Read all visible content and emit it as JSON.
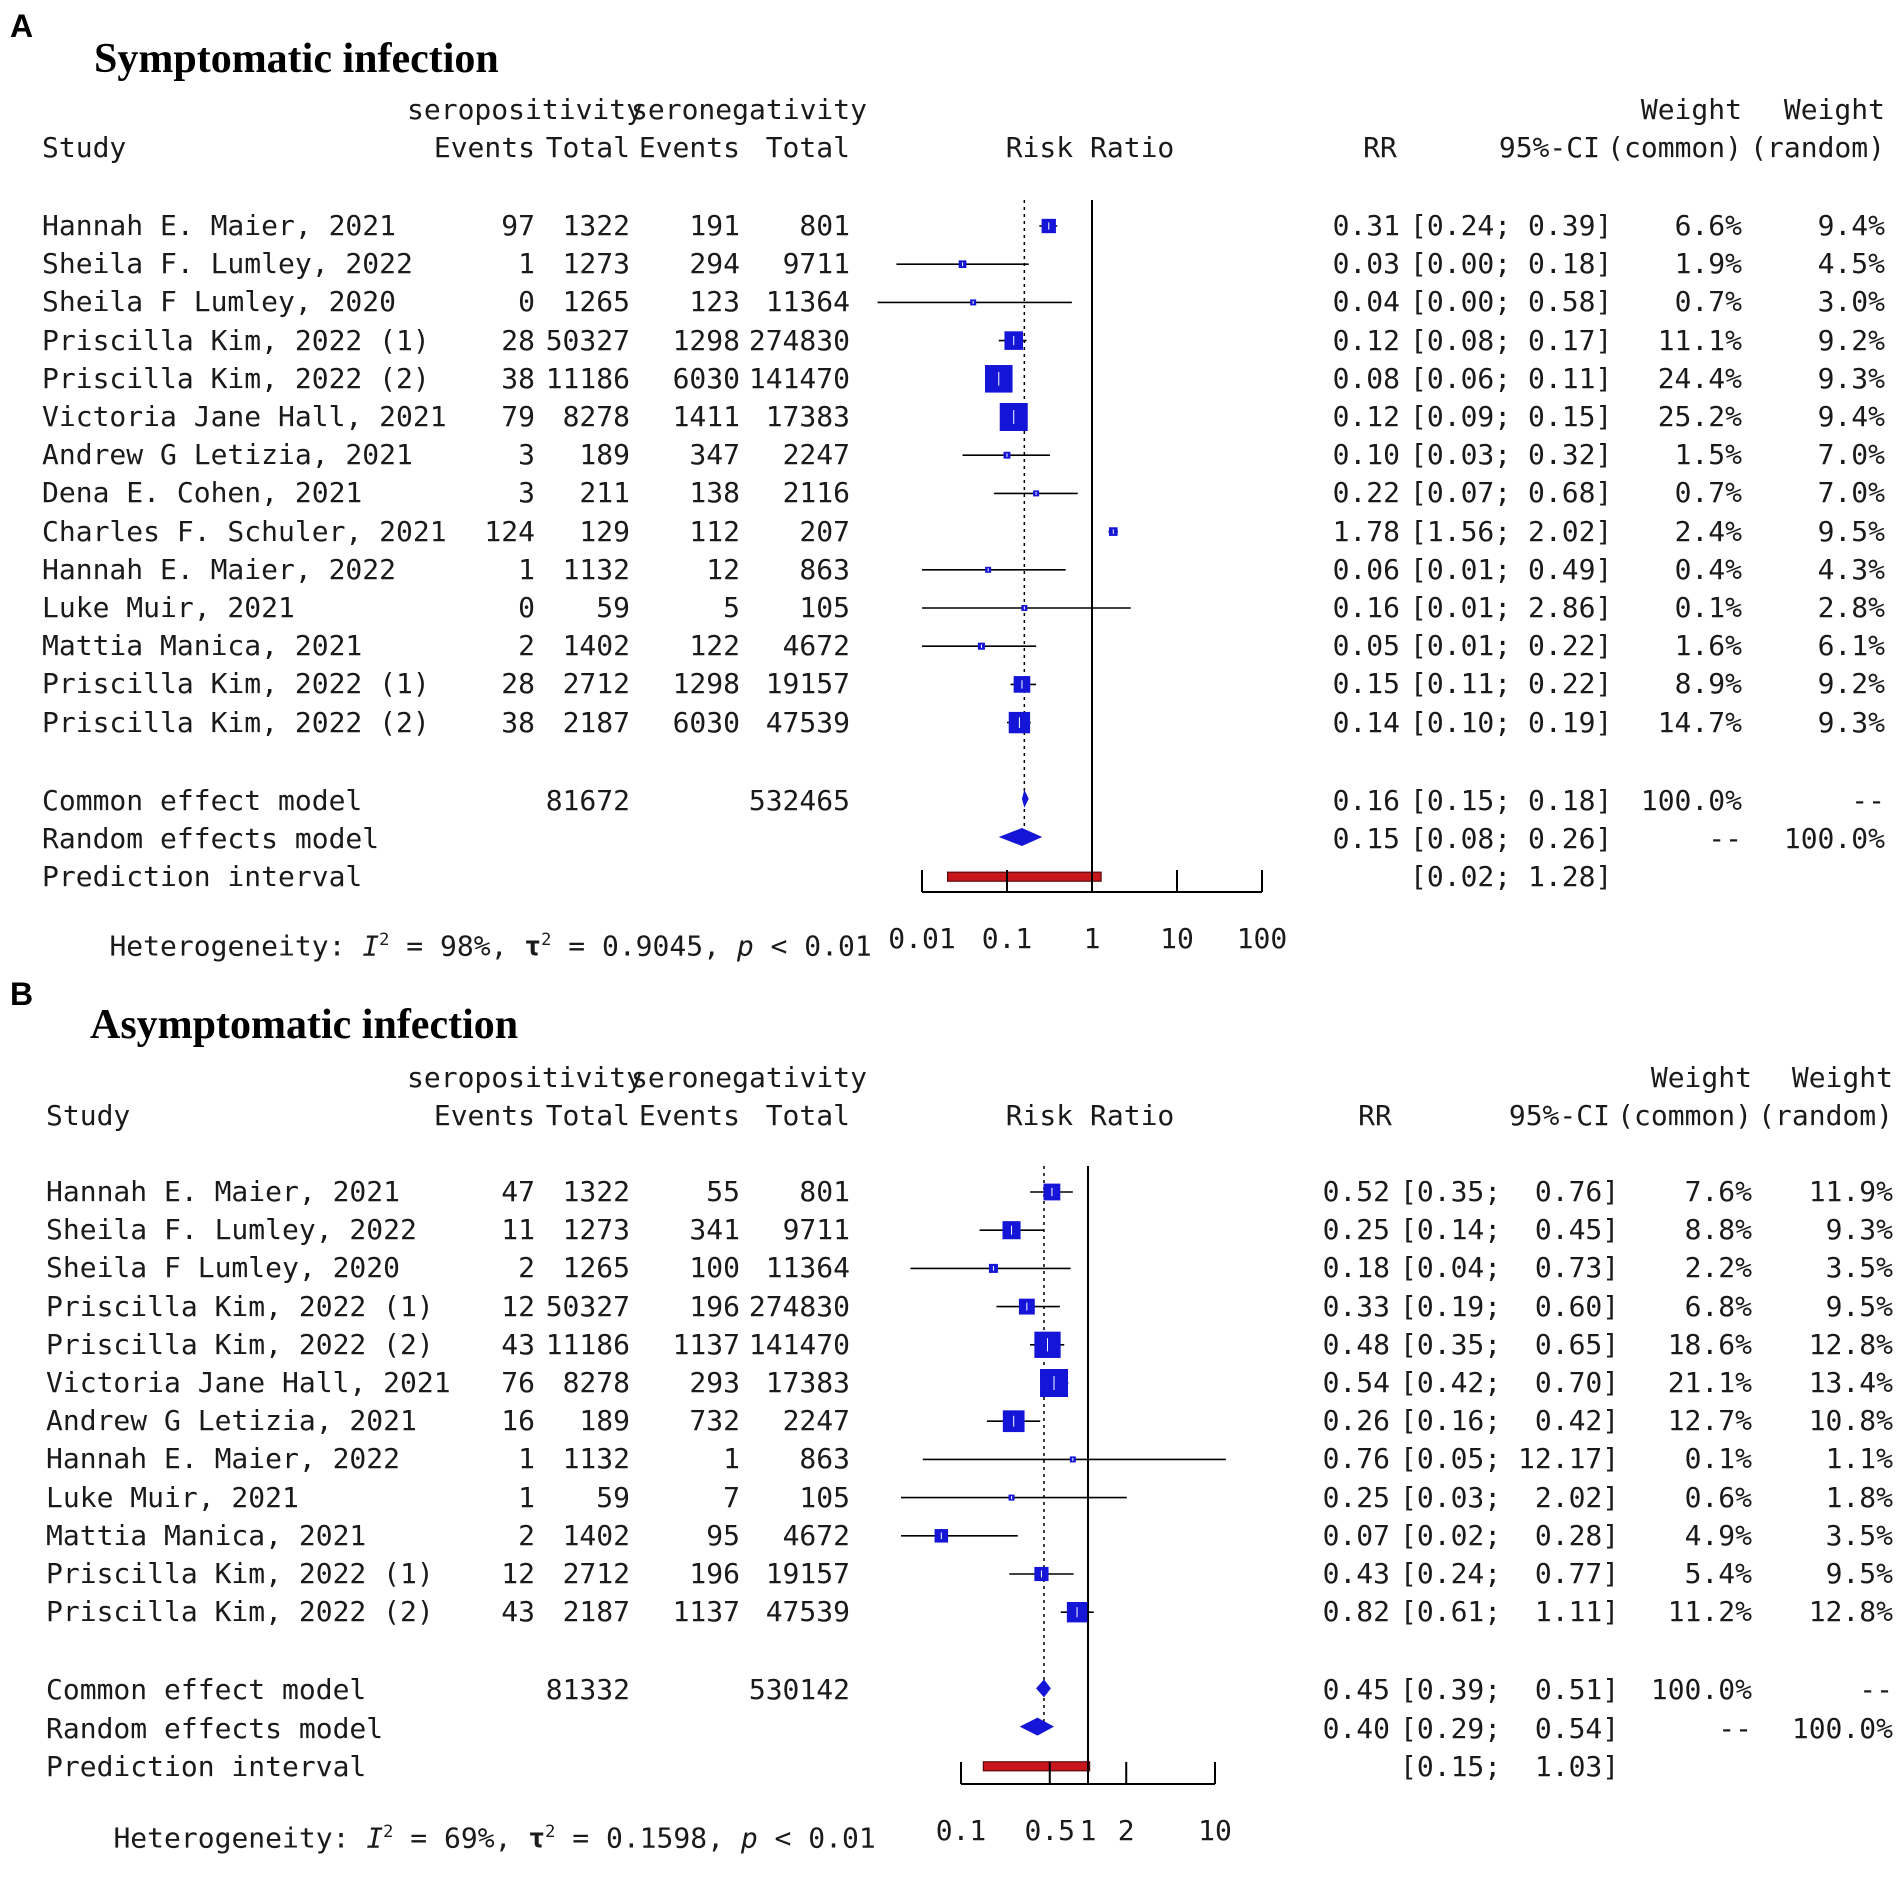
{
  "chart_data": [
    {
      "type": "forest",
      "panel_label": "A",
      "title": "Symptomatic infection",
      "group_headers": [
        "seropositivity",
        "seronegativity"
      ],
      "column_headers": [
        "Study",
        "Events",
        "Total",
        "Events",
        "Total",
        "Risk Ratio",
        "RR",
        "95%-CI",
        "Weight",
        "(common)",
        "Weight",
        "(random)"
      ],
      "x_scale": "log",
      "xlim": [
        0.01,
        100
      ],
      "null_value": 1,
      "x_ticks": [
        0.01,
        0.1,
        1,
        10,
        100
      ],
      "x_tick_labels": [
        "0.01",
        "0.1",
        "1",
        "10",
        "100"
      ],
      "studies": [
        {
          "study": "Hannah E. Maier, 2021",
          "e1": "97",
          "t1": "1322",
          "e2": "191",
          "t2": "801",
          "rr": 0.31,
          "lo": 0.24,
          "hi": 0.39,
          "rr_text": "0.31",
          "ci_text": "[0.24; 0.39]",
          "w_common": "6.6%",
          "w_random": "9.4%"
        },
        {
          "study": "Sheila F. Lumley, 2022",
          "e1": "1",
          "t1": "1273",
          "e2": "294",
          "t2": "9711",
          "rr": 0.03,
          "lo": 0.005,
          "hi": 0.18,
          "rr_text": "0.03",
          "ci_text": "[0.00; 0.18]",
          "w_common": "1.9%",
          "w_random": "4.5%"
        },
        {
          "study": "Sheila F Lumley, 2020",
          "e1": "0",
          "t1": "1265",
          "e2": "123",
          "t2": "11364",
          "rr": 0.04,
          "lo": 0.003,
          "hi": 0.58,
          "rr_text": "0.04",
          "ci_text": "[0.00; 0.58]",
          "w_common": "0.7%",
          "w_random": "3.0%"
        },
        {
          "study": "Priscilla Kim, 2022 (1)",
          "e1": "28",
          "t1": "50327",
          "e2": "1298",
          "t2": "274830",
          "rr": 0.12,
          "lo": 0.08,
          "hi": 0.17,
          "rr_text": "0.12",
          "ci_text": "[0.08; 0.17]",
          "w_common": "11.1%",
          "w_random": "9.2%"
        },
        {
          "study": "Priscilla Kim, 2022 (2)",
          "e1": "38",
          "t1": "11186",
          "e2": "6030",
          "t2": "141470",
          "rr": 0.08,
          "lo": 0.06,
          "hi": 0.11,
          "rr_text": "0.08",
          "ci_text": "[0.06; 0.11]",
          "w_common": "24.4%",
          "w_random": "9.3%"
        },
        {
          "study": "Victoria Jane Hall, 2021",
          "e1": "79",
          "t1": "8278",
          "e2": "1411",
          "t2": "17383",
          "rr": 0.12,
          "lo": 0.09,
          "hi": 0.15,
          "rr_text": "0.12",
          "ci_text": "[0.09; 0.15]",
          "w_common": "25.2%",
          "w_random": "9.4%"
        },
        {
          "study": "Andrew G Letizia, 2021",
          "e1": "3",
          "t1": "189",
          "e2": "347",
          "t2": "2247",
          "rr": 0.1,
          "lo": 0.03,
          "hi": 0.32,
          "rr_text": "0.10",
          "ci_text": "[0.03; 0.32]",
          "w_common": "1.5%",
          "w_random": "7.0%"
        },
        {
          "study": "Dena E. Cohen, 2021",
          "e1": "3",
          "t1": "211",
          "e2": "138",
          "t2": "2116",
          "rr": 0.22,
          "lo": 0.07,
          "hi": 0.68,
          "rr_text": "0.22",
          "ci_text": "[0.07; 0.68]",
          "w_common": "0.7%",
          "w_random": "7.0%"
        },
        {
          "study": "Charles F. Schuler, 2021",
          "e1": "124",
          "t1": "129",
          "e2": "112",
          "t2": "207",
          "rr": 1.78,
          "lo": 1.56,
          "hi": 2.02,
          "rr_text": "1.78",
          "ci_text": "[1.56; 2.02]",
          "w_common": "2.4%",
          "w_random": "9.5%"
        },
        {
          "study": "Hannah E. Maier, 2022",
          "e1": "1",
          "t1": "1132",
          "e2": "12",
          "t2": "863",
          "rr": 0.06,
          "lo": 0.01,
          "hi": 0.49,
          "rr_text": "0.06",
          "ci_text": "[0.01; 0.49]",
          "w_common": "0.4%",
          "w_random": "4.3%"
        },
        {
          "study": "Luke Muir, 2021",
          "e1": "0",
          "t1": "59",
          "e2": "5",
          "t2": "105",
          "rr": 0.16,
          "lo": 0.01,
          "hi": 2.86,
          "rr_text": "0.16",
          "ci_text": "[0.01; 2.86]",
          "w_common": "0.1%",
          "w_random": "2.8%"
        },
        {
          "study": "Mattia Manica, 2021",
          "e1": "2",
          "t1": "1402",
          "e2": "122",
          "t2": "4672",
          "rr": 0.05,
          "lo": 0.01,
          "hi": 0.22,
          "rr_text": "0.05",
          "ci_text": "[0.01; 0.22]",
          "w_common": "1.6%",
          "w_random": "6.1%"
        },
        {
          "study": "Priscilla Kim, 2022 (1)",
          "e1": "28",
          "t1": "2712",
          "e2": "1298",
          "t2": "19157",
          "rr": 0.15,
          "lo": 0.11,
          "hi": 0.22,
          "rr_text": "0.15",
          "ci_text": "[0.11; 0.22]",
          "w_common": "8.9%",
          "w_random": "9.2%"
        },
        {
          "study": "Priscilla Kim, 2022 (2)",
          "e1": "38",
          "t1": "2187",
          "e2": "6030",
          "t2": "47539",
          "rr": 0.14,
          "lo": 0.1,
          "hi": 0.19,
          "rr_text": "0.14",
          "ci_text": "[0.10; 0.19]",
          "w_common": "14.7%",
          "w_random": "9.3%"
        }
      ],
      "common": {
        "label": "Common effect model",
        "t1": "81672",
        "t2": "532465",
        "rr": 0.16,
        "lo": 0.15,
        "hi": 0.18,
        "rr_text": "0.16",
        "ci_text": "[0.15; 0.18]",
        "w_common": "100.0%",
        "w_random": "--"
      },
      "random": {
        "label": "Random effects model",
        "rr": 0.15,
        "lo": 0.08,
        "hi": 0.26,
        "rr_text": "0.15",
        "ci_text": "[0.08; 0.26]",
        "w_common": "--",
        "w_random": "100.0%"
      },
      "prediction": {
        "label": "Prediction interval",
        "lo": 0.02,
        "hi": 1.28,
        "ci_text": "[0.02; 1.28]"
      },
      "heterogeneity": {
        "prefix": "Heterogeneity: ",
        "i2_symbol": "I",
        "i2_value": " = 98%, ",
        "tau2_symbol": "τ",
        "tau2_value": " = 0.9045, ",
        "p_symbol": "p",
        "p_value": " < 0.01",
        "exponent": "2"
      }
    },
    {
      "type": "forest",
      "panel_label": "B",
      "title": "Asymptomatic infection",
      "group_headers": [
        "seropositivity",
        "seronegativity"
      ],
      "column_headers": [
        "Study",
        "Events",
        "Total",
        "Events",
        "Total",
        "Risk Ratio",
        "RR",
        "95%-CI",
        "Weight",
        "(common)",
        "Weight",
        "(random)"
      ],
      "x_scale": "log",
      "xlim": [
        0.1,
        10
      ],
      "null_value": 1,
      "x_ticks": [
        0.1,
        0.5,
        1,
        2,
        10
      ],
      "x_tick_labels": [
        "0.1",
        "0.5",
        "1",
        "2",
        "10"
      ],
      "studies": [
        {
          "study": "Hannah E. Maier, 2021",
          "e1": "47",
          "t1": "1322",
          "e2": "55",
          "t2": "801",
          "rr": 0.52,
          "lo": 0.35,
          "hi": 0.76,
          "rr_text": "0.52",
          "ci_text": "[0.35;  0.76]",
          "w_common": "7.6%",
          "w_random": "11.9%"
        },
        {
          "study": "Sheila F. Lumley, 2022",
          "e1": "11",
          "t1": "1273",
          "e2": "341",
          "t2": "9711",
          "rr": 0.25,
          "lo": 0.14,
          "hi": 0.45,
          "rr_text": "0.25",
          "ci_text": "[0.14;  0.45]",
          "w_common": "8.8%",
          "w_random": "9.3%"
        },
        {
          "study": "Sheila F Lumley, 2020",
          "e1": "2",
          "t1": "1265",
          "e2": "100",
          "t2": "11364",
          "rr": 0.18,
          "lo": 0.04,
          "hi": 0.73,
          "rr_text": "0.18",
          "ci_text": "[0.04;  0.73]",
          "w_common": "2.2%",
          "w_random": "3.5%"
        },
        {
          "study": "Priscilla Kim, 2022 (1)",
          "e1": "12",
          "t1": "50327",
          "e2": "196",
          "t2": "274830",
          "rr": 0.33,
          "lo": 0.19,
          "hi": 0.6,
          "rr_text": "0.33",
          "ci_text": "[0.19;  0.60]",
          "w_common": "6.8%",
          "w_random": "9.5%"
        },
        {
          "study": "Priscilla Kim, 2022 (2)",
          "e1": "43",
          "t1": "11186",
          "e2": "1137",
          "t2": "141470",
          "rr": 0.48,
          "lo": 0.35,
          "hi": 0.65,
          "rr_text": "0.48",
          "ci_text": "[0.35;  0.65]",
          "w_common": "18.6%",
          "w_random": "12.8%"
        },
        {
          "study": "Victoria Jane Hall, 2021",
          "e1": "76",
          "t1": "8278",
          "e2": "293",
          "t2": "17383",
          "rr": 0.54,
          "lo": 0.42,
          "hi": 0.7,
          "rr_text": "0.54",
          "ci_text": "[0.42;  0.70]",
          "w_common": "21.1%",
          "w_random": "13.4%"
        },
        {
          "study": "Andrew G Letizia, 2021",
          "e1": "16",
          "t1": "189",
          "e2": "732",
          "t2": "2247",
          "rr": 0.26,
          "lo": 0.16,
          "hi": 0.42,
          "rr_text": "0.26",
          "ci_text": "[0.16;  0.42]",
          "w_common": "12.7%",
          "w_random": "10.8%"
        },
        {
          "study": "Hannah E. Maier, 2022",
          "e1": "1",
          "t1": "1132",
          "e2": "1",
          "t2": "863",
          "rr": 0.76,
          "lo": 0.05,
          "hi": 12.17,
          "rr_text": "0.76",
          "ci_text": "[0.05; 12.17]",
          "w_common": "0.1%",
          "w_random": "1.1%"
        },
        {
          "study": "Luke Muir, 2021",
          "e1": "1",
          "t1": "59",
          "e2": "7",
          "t2": "105",
          "rr": 0.25,
          "lo": 0.03,
          "hi": 2.02,
          "rr_text": "0.25",
          "ci_text": "[0.03;  2.02]",
          "w_common": "0.6%",
          "w_random": "1.8%"
        },
        {
          "study": "Mattia Manica, 2021",
          "e1": "2",
          "t1": "1402",
          "e2": "95",
          "t2": "4672",
          "rr": 0.07,
          "lo": 0.02,
          "hi": 0.28,
          "rr_text": "0.07",
          "ci_text": "[0.02;  0.28]",
          "w_common": "4.9%",
          "w_random": "3.5%"
        },
        {
          "study": "Priscilla Kim, 2022 (1)",
          "e1": "12",
          "t1": "2712",
          "e2": "196",
          "t2": "19157",
          "rr": 0.43,
          "lo": 0.24,
          "hi": 0.77,
          "rr_text": "0.43",
          "ci_text": "[0.24;  0.77]",
          "w_common": "5.4%",
          "w_random": "9.5%"
        },
        {
          "study": "Priscilla Kim, 2022 (2)",
          "e1": "43",
          "t1": "2187",
          "e2": "1137",
          "t2": "47539",
          "rr": 0.82,
          "lo": 0.61,
          "hi": 1.11,
          "rr_text": "0.82",
          "ci_text": "[0.61;  1.11]",
          "w_common": "11.2%",
          "w_random": "12.8%"
        }
      ],
      "common": {
        "label": "Common effect model",
        "t1": "81332",
        "t2": "530142",
        "rr": 0.45,
        "lo": 0.39,
        "hi": 0.51,
        "rr_text": "0.45",
        "ci_text": "[0.39;  0.51]",
        "w_common": "100.0%",
        "w_random": "--"
      },
      "random": {
        "label": "Random effects model",
        "rr": 0.4,
        "lo": 0.29,
        "hi": 0.54,
        "rr_text": "0.40",
        "ci_text": "[0.29;  0.54]",
        "w_common": "--",
        "w_random": "100.0%"
      },
      "prediction": {
        "label": "Prediction interval",
        "lo": 0.15,
        "hi": 1.03,
        "ci_text": "[0.15;  1.03]"
      },
      "heterogeneity": {
        "prefix": "Heterogeneity: ",
        "i2_symbol": "I",
        "i2_value": " = 69%, ",
        "tau2_symbol": "τ",
        "tau2_value": " = 0.1598, ",
        "p_symbol": "p",
        "p_value": " < 0.01",
        "exponent": "2"
      }
    }
  ],
  "colors": {
    "square": "#1515d8",
    "diamond": "#1515d8",
    "prediction_fill": "#c8161d",
    "prediction_stroke": "#5a0a0a",
    "line": "#000000",
    "text": "#1a1a1a"
  }
}
